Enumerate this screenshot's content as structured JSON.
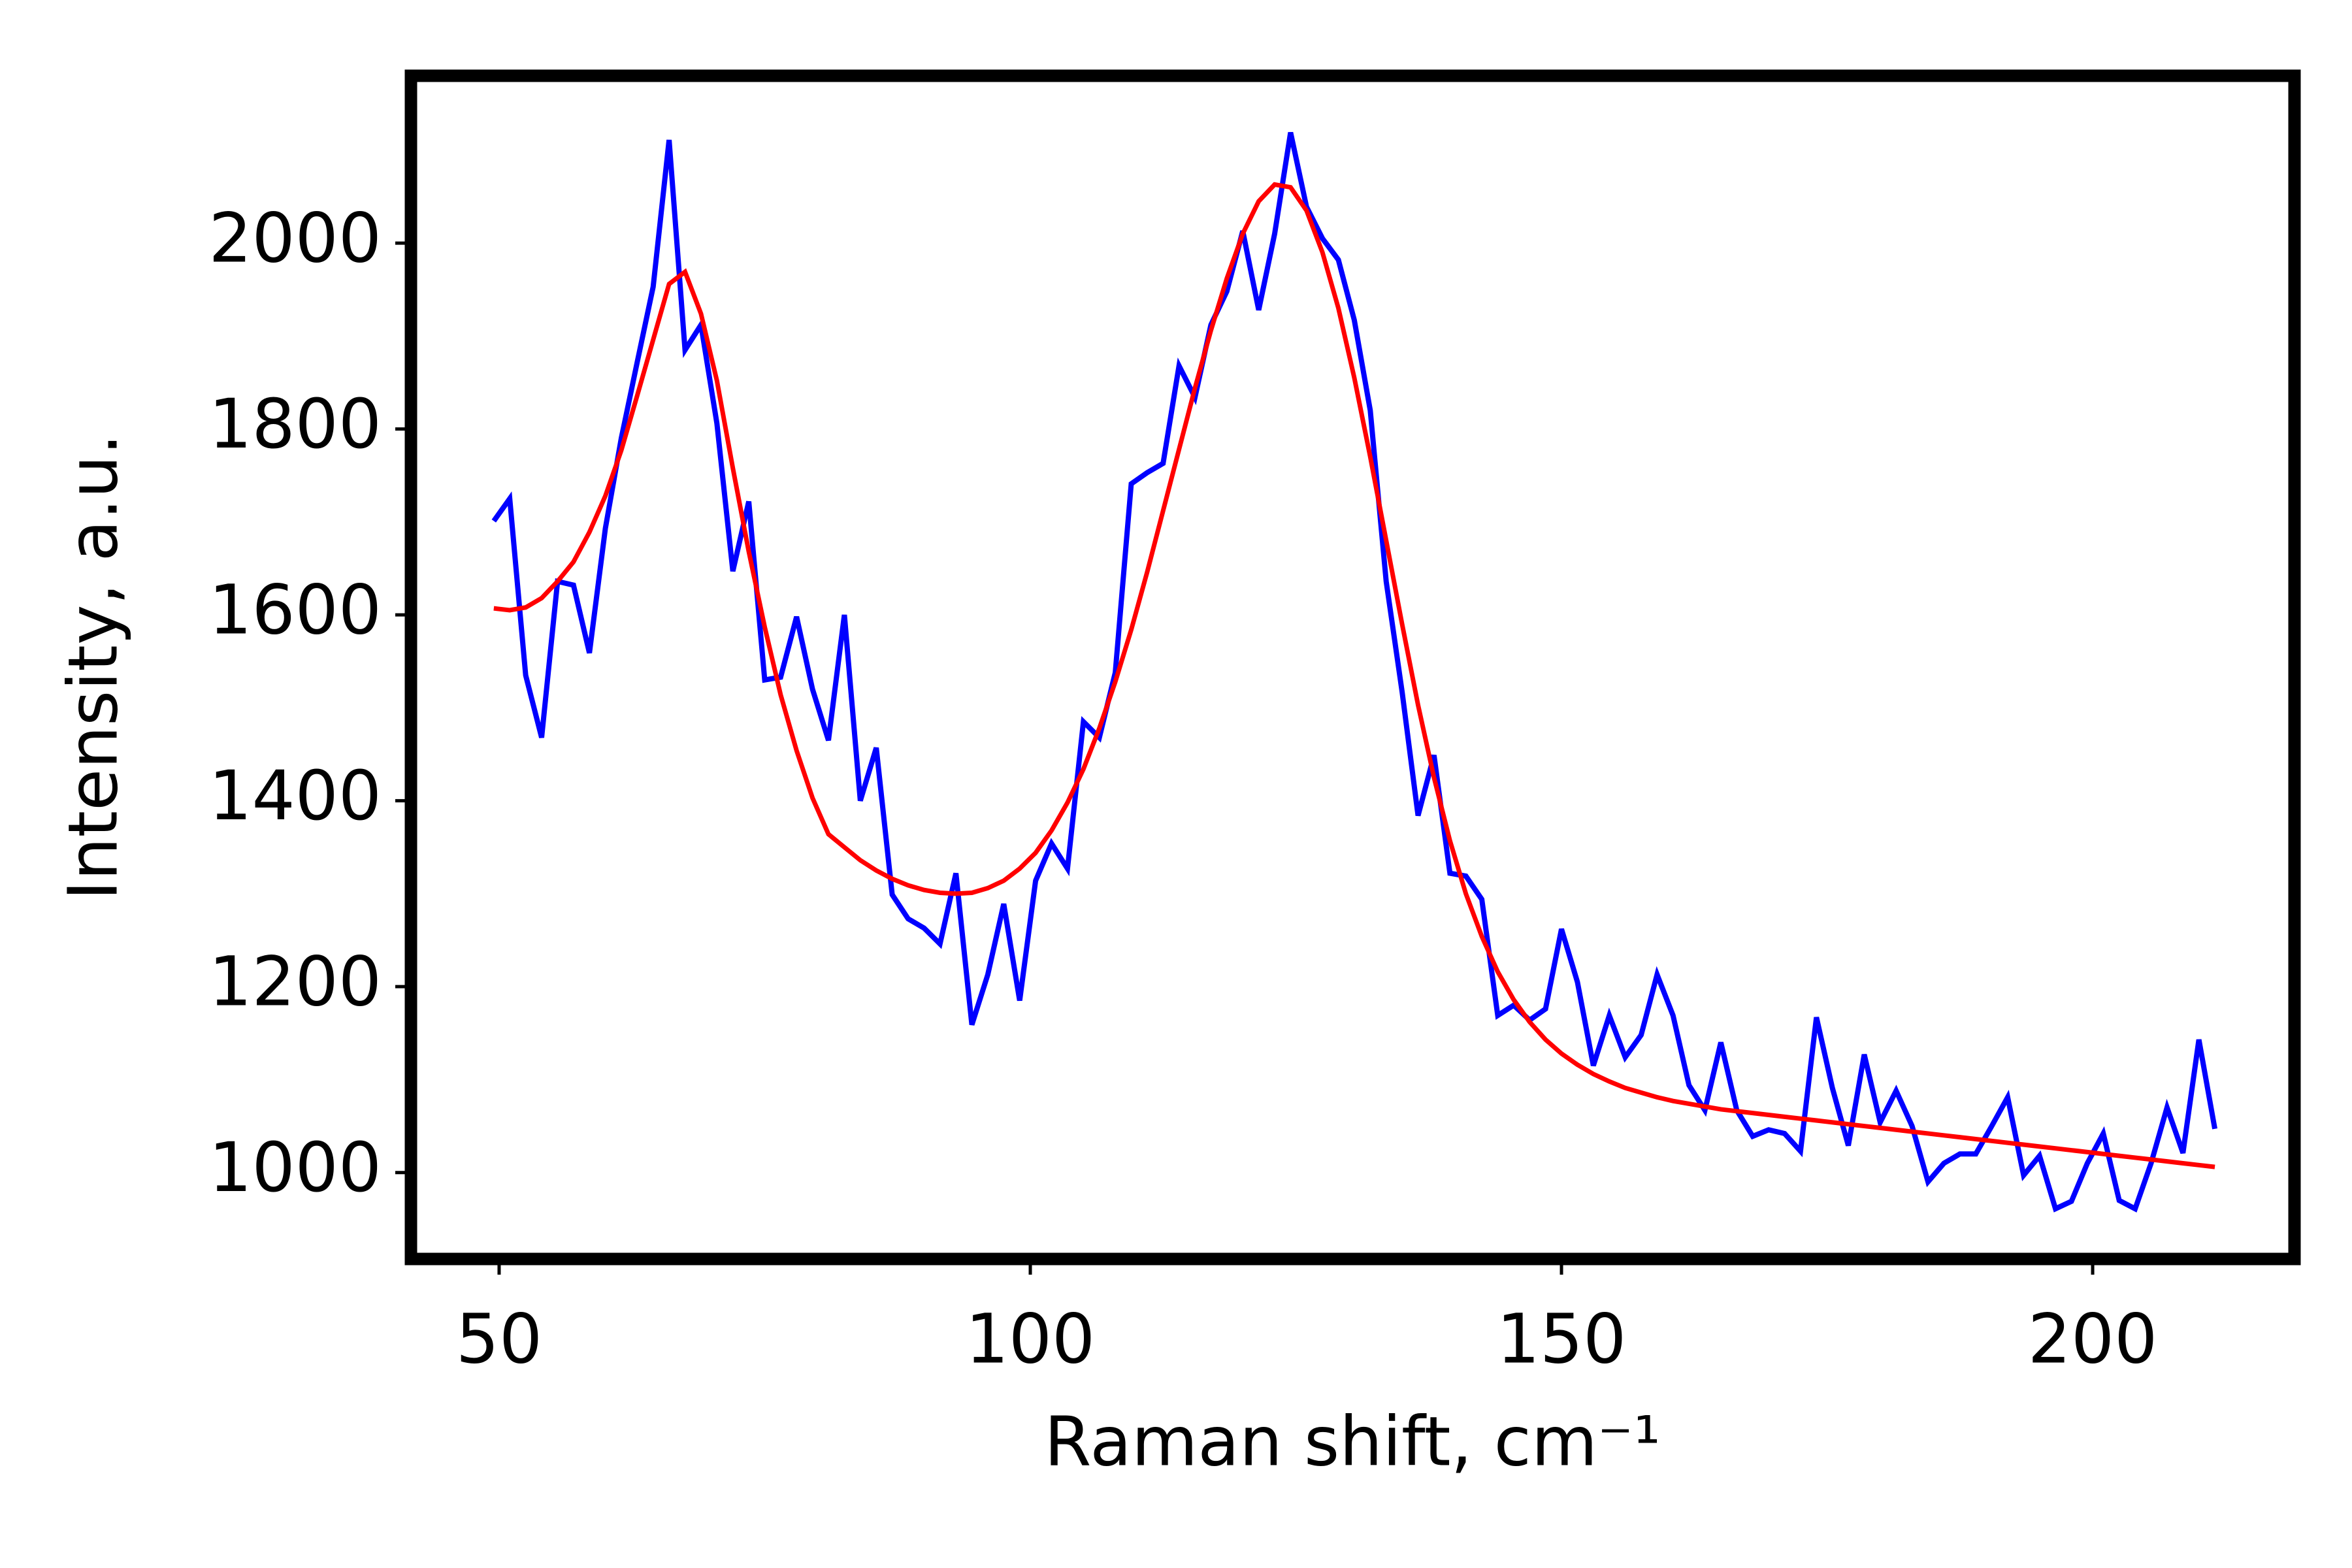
{
  "chart_data": {
    "type": "line",
    "xlabel": "Raman shift, cm⁻¹",
    "ylabel": "Intensity, a.u.",
    "xlim": [
      41.7,
      219
    ],
    "ylim": [
      907,
      2180
    ],
    "xticks": [
      50,
      100,
      150,
      200
    ],
    "yticks": [
      1000,
      1200,
      1400,
      1600,
      1800,
      2000
    ],
    "x": [
      49.5,
      51,
      52.5,
      54,
      55.5,
      57,
      58.5,
      60,
      61.5,
      63,
      64.5,
      66,
      67.5,
      69,
      70.5,
      72,
      73.5,
      75,
      76.5,
      78,
      79.5,
      81,
      82.5,
      84,
      85.5,
      87,
      88.5,
      90,
      91.5,
      93,
      94.5,
      96,
      97.5,
      99,
      100.5,
      102,
      103.5,
      105,
      106.5,
      108,
      109.5,
      111,
      112.5,
      114,
      115.5,
      117,
      118.5,
      120,
      121.5,
      123,
      124.5,
      126,
      127.5,
      129,
      130.5,
      132,
      133.5,
      135,
      136.5,
      138,
      139.5,
      141,
      142.5,
      144,
      145.5,
      147,
      148.5,
      150,
      151.5,
      153,
      154.5,
      156,
      157.5,
      159,
      160.5,
      162,
      163.5,
      165,
      166.5,
      168,
      169.5,
      171,
      172.5,
      174,
      175.5,
      177,
      178.5,
      180,
      181.5,
      183,
      184.5,
      186,
      187.5,
      189,
      190.5,
      192,
      193.5,
      195,
      196.5,
      198,
      199.5,
      201,
      202.5,
      204,
      205.5,
      207,
      208.5,
      210,
      211.5
    ],
    "series": [
      {
        "color": "#0000ff",
        "values": [
          1701,
          1725,
          1535,
          1468,
          1636,
          1632,
          1559,
          1693,
          1790,
          1872,
          1953,
          2111,
          1885,
          1912,
          1806,
          1647,
          1722,
          1530,
          1533,
          1598,
          1520,
          1465,
          1600,
          1400,
          1457,
          1299,
          1273,
          1263,
          1246,
          1322,
          1159,
          1213,
          1289,
          1185,
          1314,
          1354,
          1327,
          1485,
          1468,
          1538,
          1741,
          1753,
          1763,
          1868,
          1834,
          1912,
          1948,
          2013,
          1928,
          2010,
          2119,
          2039,
          2005,
          1982,
          1917,
          1820,
          1636,
          1517,
          1384,
          1449,
          1322,
          1319,
          1294,
          1169,
          1180,
          1164,
          1176,
          1262,
          1205,
          1115,
          1169,
          1124,
          1148,
          1213,
          1169,
          1094,
          1067,
          1140,
          1067,
          1039,
          1046,
          1042,
          1023,
          1167,
          1091,
          1029,
          1127,
          1054,
          1088,
          1050,
          990,
          1010,
          1020,
          1020,
          1050,
          1081,
          997,
          1018,
          961,
          969,
          1010,
          1042,
          970,
          961,
          1010,
          1070,
          1021,
          1143,
          1047
        ]
      },
      {
        "color": "#ff0000",
        "values": [
          1607,
          1605,
          1608,
          1618,
          1636,
          1657,
          1689,
          1728,
          1777,
          1836,
          1896,
          1956,
          1969,
          1924,
          1852,
          1758,
          1668,
          1587,
          1514,
          1454,
          1403,
          1364,
          1350,
          1336,
          1325,
          1316,
          1309,
          1304,
          1301,
          1300,
          1301,
          1306,
          1314,
          1327,
          1344,
          1368,
          1398,
          1434,
          1478,
          1528,
          1584,
          1646,
          1712,
          1778,
          1844,
          1906,
          1962,
          2010,
          2045,
          2063,
          2060,
          2035,
          1990,
          1930,
          1855,
          1770,
          1680,
          1590,
          1503,
          1425,
          1357,
          1300,
          1254,
          1216,
          1186,
          1162,
          1143,
          1128,
          1116,
          1106,
          1098,
          1091,
          1086,
          1081,
          1077,
          1074,
          1071,
          1068,
          1066,
          1064,
          1062,
          1060,
          1058,
          1056,
          1054,
          1052,
          1050,
          1048,
          1046,
          1044,
          1042,
          1040,
          1038,
          1036,
          1034,
          1032,
          1030,
          1028,
          1026,
          1024,
          1022,
          1020,
          1018,
          1016,
          1014,
          1012,
          1010,
          1008,
          1006
        ]
      }
    ]
  }
}
